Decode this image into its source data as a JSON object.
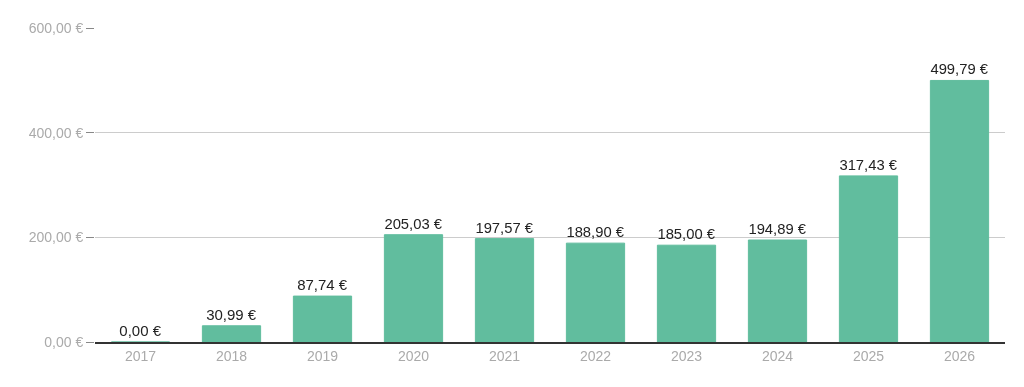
{
  "chart_data": {
    "type": "bar",
    "categories": [
      "2017",
      "2018",
      "2019",
      "2020",
      "2021",
      "2022",
      "2023",
      "2024",
      "2025",
      "2026"
    ],
    "values": [
      0,
      30.99,
      87.74,
      205.03,
      197.57,
      188.9,
      185,
      194.89,
      317.43,
      499.79
    ],
    "value_labels": [
      "0,00 €",
      "30,99 €",
      "87,74 €",
      "205,03 €",
      "197,57 €",
      "188,90 €",
      "185,00 €",
      "194,89 €",
      "317,43 €",
      "499,79 €"
    ],
    "color": "#61bd9e",
    "ylim": [
      0,
      600
    ],
    "yticks": [
      {
        "value": 0,
        "label": "0,00 €"
      },
      {
        "value": 200,
        "label": "200,00 €"
      },
      {
        "value": 400,
        "label": "400,00 €"
      },
      {
        "value": 600,
        "label": "600,00 €"
      }
    ],
    "grid": "y"
  }
}
